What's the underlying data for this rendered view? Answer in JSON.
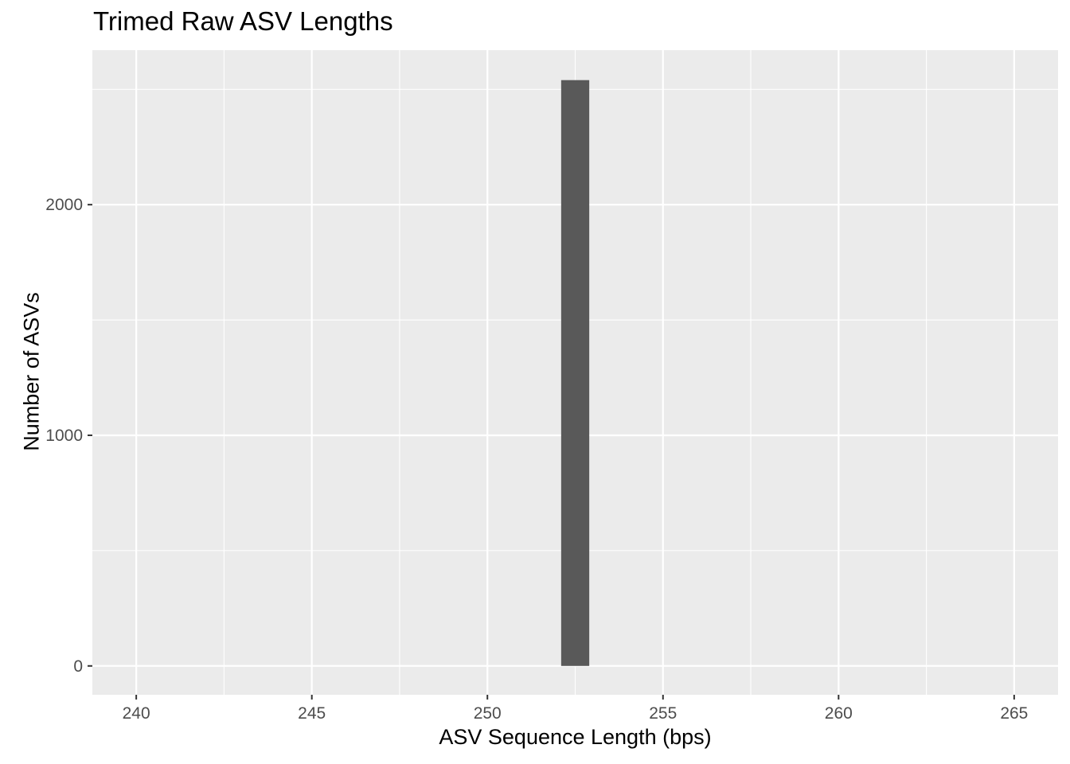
{
  "chart_data": {
    "type": "bar",
    "title": "Trimed Raw ASV Lengths",
    "xlabel": "ASV Sequence Length (bps)",
    "ylabel": "Number of ASVs",
    "bars": [
      {
        "x_start": 252.1,
        "x_end": 252.9,
        "value": 2540
      }
    ],
    "xlim": [
      238.75,
      266.25
    ],
    "ylim": [
      -125,
      2670
    ],
    "x_ticks": [
      240,
      245,
      250,
      255,
      260,
      265
    ],
    "x_tick_labels": [
      "240",
      "245",
      "250",
      "255",
      "260",
      "265"
    ],
    "y_ticks": [
      0,
      1000,
      2000
    ],
    "y_tick_labels": [
      "0",
      "1000",
      "2000"
    ],
    "x_minor_ticks": [
      242.5,
      247.5,
      252.5,
      257.5,
      262.5
    ],
    "y_minor_ticks": [
      500,
      1500,
      2500
    ],
    "grid": true,
    "colors": {
      "panel_background": "#EBEBEB",
      "grid_line": "#FFFFFF",
      "bar_fill": "#595959",
      "tick_label": "#4D4D4D",
      "axis_tick": "#333333"
    }
  }
}
